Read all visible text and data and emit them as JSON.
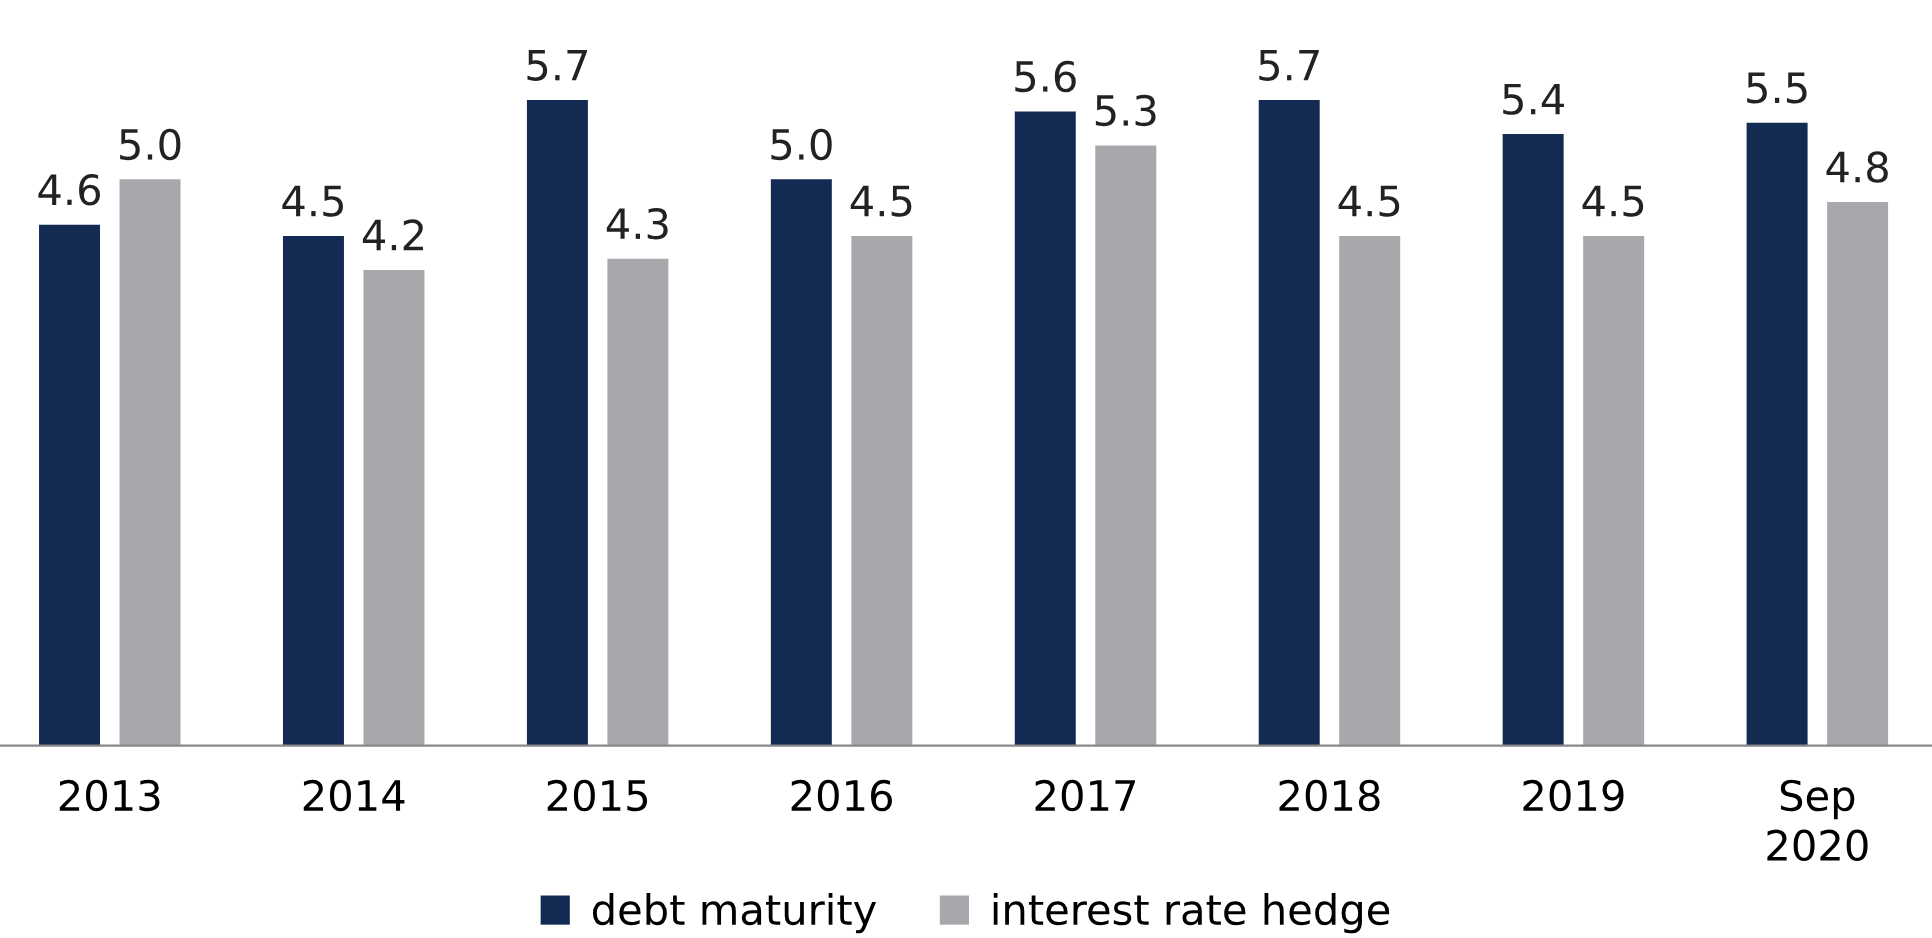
{
  "chart_data": {
    "type": "bar",
    "categories": [
      "2013",
      "2014",
      "2015",
      "2016",
      "2017",
      "2018",
      "2019",
      "Sep\n2020"
    ],
    "series": [
      {
        "name": "debt maturity",
        "color": "#132b52",
        "values": [
          4.6,
          4.5,
          5.7,
          5.0,
          5.6,
          5.7,
          5.4,
          5.5
        ],
        "value_labels": [
          "4.6",
          "4.5",
          "5.7",
          "5.0",
          "5.6",
          "5.7",
          "5.4",
          "5.5"
        ]
      },
      {
        "name": "interest rate hedge",
        "color": "#a6a8ab",
        "values": [
          5.0,
          4.2,
          4.3,
          4.5,
          5.3,
          4.5,
          4.5,
          4.8
        ],
        "value_labels": [
          "5.0",
          "4.2",
          "4.3",
          "4.5",
          "5.3",
          "4.5",
          "4.5",
          "4.8"
        ]
      }
    ],
    "legend": "bottom",
    "grid": false,
    "tick_labels": "x"
  }
}
